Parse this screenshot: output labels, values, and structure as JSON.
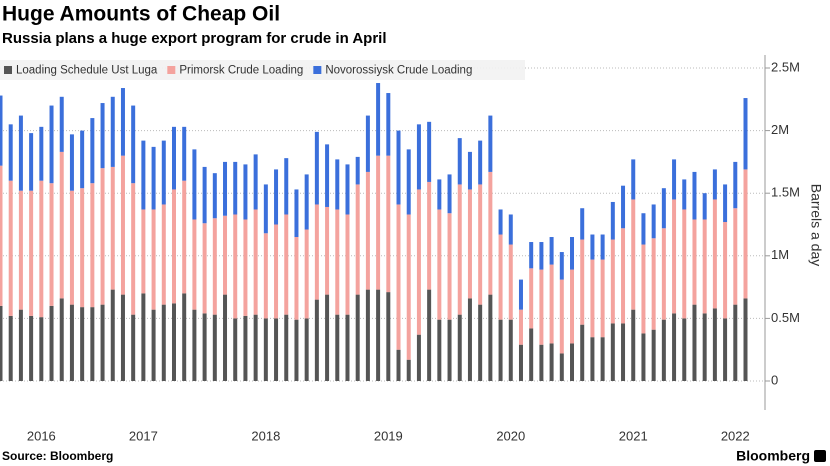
{
  "chart_data": {
    "type": "stacked_bar",
    "title": "Huge Amounts of Cheap Oil",
    "subtitle": "Russia plans a huge export program for crude in April",
    "y_label": "Barrels a day",
    "source": "Source: Bloomberg",
    "brand": "Bloomberg",
    "categories": [
      null,
      null,
      null,
      null,
      "2016",
      null,
      null,
      null,
      null,
      null,
      null,
      null,
      null,
      null,
      "2017",
      null,
      null,
      null,
      null,
      null,
      null,
      null,
      null,
      null,
      null,
      null,
      "2018",
      null,
      null,
      null,
      null,
      null,
      null,
      null,
      null,
      null,
      null,
      null,
      "2019",
      null,
      null,
      null,
      null,
      null,
      null,
      null,
      null,
      null,
      null,
      null,
      "2020",
      null,
      null,
      null,
      null,
      null,
      null,
      null,
      null,
      null,
      null,
      null,
      "2021",
      null,
      null,
      null,
      null,
      null,
      null,
      null,
      null,
      null,
      "2022",
      null
    ],
    "series": [
      {
        "name": "Loading Schedule Ust Luga",
        "color": "#555555",
        "values": [
          600000,
          520000,
          570000,
          520000,
          510000,
          600000,
          660000,
          610000,
          590000,
          590000,
          610000,
          730000,
          690000,
          530000,
          700000,
          570000,
          610000,
          620000,
          700000,
          570000,
          540000,
          530000,
          690000,
          500000,
          520000,
          530000,
          500000,
          500000,
          530000,
          490000,
          500000,
          650000,
          690000,
          530000,
          530000,
          690000,
          730000,
          730000,
          710000,
          250000,
          170000,
          370000,
          730000,
          490000,
          490000,
          530000,
          660000,
          610000,
          690000,
          490000,
          490000,
          290000,
          420000,
          290000,
          300000,
          220000,
          300000,
          450000,
          350000,
          350000,
          460000,
          460000,
          570000,
          380000,
          410000,
          490000,
          540000,
          500000,
          610000,
          540000,
          580000,
          500000,
          610000,
          660000
        ]
      },
      {
        "name": "Primorsk Crude Loading",
        "color": "#f4a39e",
        "values": [
          1120000,
          1080000,
          950000,
          1000000,
          1090000,
          980000,
          1170000,
          910000,
          950000,
          990000,
          1090000,
          980000,
          1110000,
          1050000,
          670000,
          800000,
          800000,
          910000,
          900000,
          720000,
          720000,
          770000,
          630000,
          830000,
          770000,
          840000,
          680000,
          750000,
          800000,
          660000,
          710000,
          760000,
          700000,
          840000,
          800000,
          880000,
          940000,
          1070000,
          1090000,
          1160000,
          1160000,
          1160000,
          860000,
          880000,
          850000,
          1040000,
          870000,
          960000,
          980000,
          680000,
          600000,
          280000,
          480000,
          600000,
          630000,
          590000,
          590000,
          680000,
          620000,
          620000,
          670000,
          760000,
          880000,
          710000,
          730000,
          730000,
          910000,
          870000,
          680000,
          750000,
          870000,
          770000,
          770000,
          1030000
        ]
      },
      {
        "name": "Novorossiysk Crude Loading",
        "color": "#3b6fdb",
        "values": [
          560000,
          450000,
          600000,
          460000,
          430000,
          620000,
          440000,
          450000,
          460000,
          520000,
          520000,
          560000,
          540000,
          620000,
          550000,
          500000,
          510000,
          500000,
          430000,
          560000,
          450000,
          360000,
          430000,
          420000,
          440000,
          440000,
          390000,
          440000,
          450000,
          380000,
          440000,
          580000,
          500000,
          400000,
          400000,
          220000,
          450000,
          580000,
          500000,
          590000,
          520000,
          520000,
          480000,
          240000,
          310000,
          370000,
          300000,
          350000,
          450000,
          200000,
          240000,
          240000,
          210000,
          220000,
          220000,
          220000,
          260000,
          250000,
          200000,
          200000,
          300000,
          340000,
          320000,
          250000,
          270000,
          320000,
          320000,
          240000,
          380000,
          210000,
          240000,
          300000,
          370000,
          570000
        ]
      }
    ],
    "ylim": [
      0,
      2500000
    ],
    "yticks": [
      0,
      {
        "value": 500000,
        "label": "0.5M"
      },
      {
        "value": 1000000,
        "label": "1M"
      },
      {
        "value": 1500000,
        "label": "1.5M"
      },
      {
        "value": 2000000,
        "label": "2M"
      },
      {
        "value": 2500000,
        "label": "2.5M"
      }
    ],
    "grid": true,
    "legend": "top-left"
  }
}
